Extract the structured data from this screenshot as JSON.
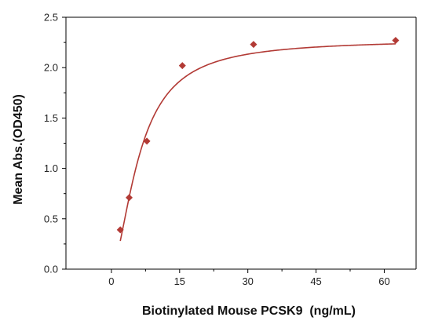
{
  "chart_data": {
    "type": "scatter",
    "title": "",
    "xlabel": "Biotinylated Mouse PCSK9  (ng/mL)",
    "ylabel": "Mean Abs.(OD450)",
    "xlim": [
      -10,
      67
    ],
    "ylim": [
      0,
      2.5
    ],
    "x_ticks": [
      0,
      15,
      30,
      45,
      60
    ],
    "y_ticks": [
      0.0,
      0.5,
      1.0,
      1.5,
      2.0,
      2.5
    ],
    "x_tick_labels": [
      "0",
      "15",
      "30",
      "45",
      "60"
    ],
    "y_tick_labels": [
      "0.0",
      "0.5",
      "1.0",
      "1.5",
      "2.0",
      "2.5"
    ],
    "grid": false,
    "legend": "none",
    "marker": "diamond",
    "color": "#b23a35",
    "series": [
      {
        "x": [
          1.95,
          3.9,
          7.8,
          15.6,
          31.25,
          62.5
        ],
        "y": [
          0.39,
          0.71,
          1.27,
          2.02,
          2.23,
          2.27
        ]
      }
    ],
    "fit_curve": {
      "type": "4-parameter logistic",
      "bottom": 0.0,
      "top": 2.28,
      "ec50": 6.2,
      "hill": 1.7,
      "x_start": 1.95,
      "x_end": 62.5
    }
  }
}
